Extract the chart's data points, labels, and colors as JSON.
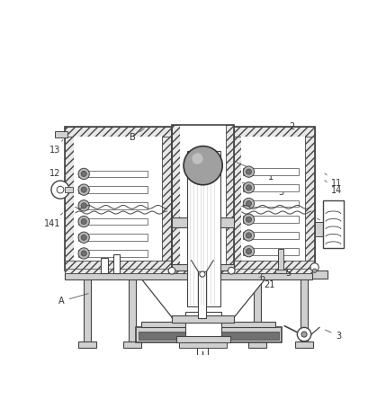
{
  "bg_color": "#ffffff",
  "lc": "#444444",
  "lc2": "#666666",
  "label_color": "#333333",
  "figsize": [
    4.29,
    4.44
  ],
  "dpi": 100,
  "hatch_fc": "#e8e8e8",
  "gray_light": "#d0d0d0",
  "gray_mid": "#a0a0a0",
  "gray_dark": "#707070",
  "white": "#ffffff"
}
